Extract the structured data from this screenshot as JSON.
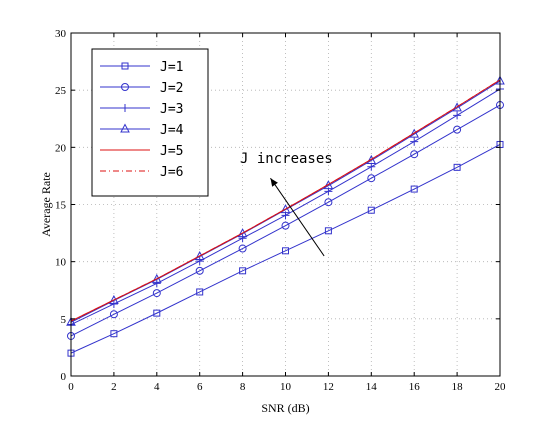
{
  "chart_data": {
    "type": "line",
    "xlabel": "SNR (dB)",
    "ylabel": "Average Rate",
    "xlim": [
      0,
      20
    ],
    "ylim": [
      0,
      30
    ],
    "xticks": [
      0,
      2,
      4,
      6,
      8,
      10,
      12,
      14,
      16,
      18,
      20
    ],
    "yticks": [
      0,
      5,
      10,
      15,
      20,
      25,
      30
    ],
    "grid": true,
    "legend_position": "top-left",
    "x": [
      0,
      2,
      4,
      6,
      8,
      10,
      12,
      14,
      16,
      18,
      20
    ],
    "series": [
      {
        "name": "J=1",
        "color": "#3333cc",
        "marker": "square",
        "line": "solid",
        "values": [
          2.0,
          3.7,
          5.5,
          7.35,
          9.2,
          10.95,
          12.7,
          14.5,
          16.35,
          18.25,
          20.25
        ]
      },
      {
        "name": "J=2",
        "color": "#3333cc",
        "marker": "circle",
        "line": "solid",
        "values": [
          3.5,
          5.4,
          7.25,
          9.2,
          11.15,
          13.15,
          15.2,
          17.3,
          19.4,
          21.55,
          23.7
        ]
      },
      {
        "name": "J=3",
        "color": "#3333cc",
        "marker": "plus",
        "line": "solid",
        "values": [
          4.5,
          6.3,
          8.1,
          10.05,
          12.05,
          14.05,
          16.15,
          18.3,
          20.5,
          22.8,
          25.1
        ]
      },
      {
        "name": "J=4",
        "color": "#3333cc",
        "marker": "triangle",
        "line": "solid",
        "values": [
          4.7,
          6.6,
          8.45,
          10.45,
          12.45,
          14.55,
          16.65,
          18.85,
          21.15,
          23.45,
          25.8
        ]
      },
      {
        "name": "J=5",
        "color": "#dd1111",
        "marker": "none",
        "line": "solid",
        "values": [
          4.8,
          6.65,
          8.5,
          10.5,
          12.5,
          14.6,
          16.75,
          18.95,
          21.25,
          23.55,
          25.9
        ]
      },
      {
        "name": "J=6",
        "color": "#dd1111",
        "marker": "none",
        "line": "dashdot",
        "values": [
          4.8,
          6.65,
          8.5,
          10.5,
          12.5,
          14.6,
          16.75,
          18.95,
          21.25,
          23.55,
          25.9
        ]
      }
    ],
    "annotation": {
      "text": "J increases",
      "arrow_from": [
        11.8,
        10.5
      ],
      "arrow_to": [
        9.3,
        17.3
      ]
    }
  }
}
